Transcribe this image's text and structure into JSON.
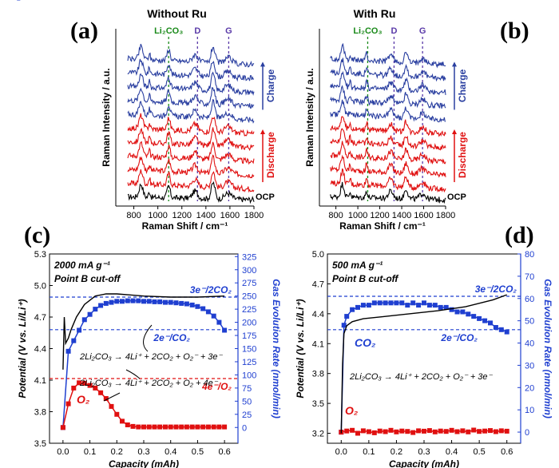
{
  "chart_data": [
    {
      "panel": "(a)",
      "type": "line",
      "title": "Without Ru",
      "xlabel": "Raman Shift / cm⁻¹",
      "ylabel": "Raman Intensity / a.u.",
      "xlim": [
        650,
        1800
      ],
      "xticks": [
        "800",
        "1000",
        "1200",
        "1400",
        "1600",
        "1800"
      ],
      "peak_markers": [
        {
          "label": "Li₂CO₃",
          "x": 1090,
          "color": "#1a8a1a"
        },
        {
          "label": "D",
          "x": 1330,
          "color": "#5a3aa8"
        },
        {
          "label": "G",
          "x": 1590,
          "color": "#5a3aa8"
        }
      ],
      "series_labels": {
        "charge": "Charge",
        "discharge": "Discharge",
        "ocp": "OCP"
      },
      "spectra": {
        "ocp": 1,
        "discharge": 5,
        "charge": 5
      }
    },
    {
      "panel": "(b)",
      "type": "line",
      "title": "With Ru",
      "xlabel": "Raman Shift / cm⁻¹",
      "ylabel": "Raman Intensity / a.u.",
      "xlim": [
        650,
        1800
      ],
      "xticks": [
        "800",
        "1000",
        "1200",
        "1400",
        "1600",
        "1800"
      ],
      "peak_markers": [
        {
          "label": "Li₂CO₃",
          "x": 1090,
          "color": "#1a8a1a"
        },
        {
          "label": "D",
          "x": 1330,
          "color": "#5a3aa8"
        },
        {
          "label": "G",
          "x": 1590,
          "color": "#5a3aa8"
        }
      ],
      "series_labels": {
        "charge": "Charge",
        "discharge": "Discharge",
        "ocp": "OCP"
      },
      "spectra": {
        "ocp": 1,
        "discharge": 5,
        "charge": 5
      }
    },
    {
      "panel": "(c)",
      "type": "line",
      "xlabel": "Capacity (mAh)",
      "ylabel": "Potential (V vs. Li/Li⁺)",
      "y2label": "Gas Evolution Rate (nmol/min)",
      "xlim": [
        -0.05,
        0.65
      ],
      "ylim": [
        3.5,
        5.3
      ],
      "y2lim": [
        -30,
        330
      ],
      "xticks": [
        "0.0",
        "0.1",
        "0.2",
        "0.3",
        "0.4",
        "0.5",
        "0.6"
      ],
      "yticks": [
        "3.5",
        "3.8",
        "4.1",
        "4.4",
        "4.7",
        "5.0",
        "5.3"
      ],
      "y2ticks": [
        "0",
        "25",
        "50",
        "75",
        "100",
        "125",
        "150",
        "175",
        "200",
        "225",
        "250",
        "275",
        "300",
        "325"
      ],
      "annotations": [
        "2000 mA g⁻¹",
        "Point B cut-off"
      ],
      "reference_lines": [
        {
          "label": "3e⁻/2CO₂",
          "y2": 248,
          "color": "#1f3fd0"
        },
        {
          "label": "2e⁻/CO₂",
          "y2": 186,
          "color": "#1f3fd0"
        },
        {
          "label": "4e⁻/O₂",
          "y2": 93,
          "color": "#e01010"
        }
      ],
      "equations": [
        "2Li₂CO₃ → 4Li⁺ + 2CO₂ + O₂⁻ + 3e⁻",
        "2Li₂CO₃ → 4Li⁺ + 2CO₂ + O₂ + 4e⁻"
      ],
      "series": [
        {
          "name": "CO₂",
          "color": "#1f3fd0",
          "x": [
            0.0,
            0.02,
            0.04,
            0.06,
            0.08,
            0.1,
            0.12,
            0.14,
            0.16,
            0.18,
            0.2,
            0.22,
            0.24,
            0.26,
            0.28,
            0.3,
            0.32,
            0.34,
            0.36,
            0.38,
            0.4,
            0.42,
            0.44,
            0.46,
            0.48,
            0.5,
            0.52,
            0.54,
            0.56,
            0.58,
            0.6
          ],
          "y": [
            0,
            145,
            165,
            185,
            205,
            215,
            225,
            232,
            236,
            238,
            240,
            240,
            241,
            241,
            241,
            240,
            240,
            239,
            239,
            238,
            238,
            237,
            236,
            235,
            233,
            230,
            226,
            220,
            212,
            200,
            185
          ]
        },
        {
          "name": "O₂",
          "color": "#e01010",
          "x": [
            0.0,
            0.02,
            0.04,
            0.06,
            0.08,
            0.1,
            0.12,
            0.14,
            0.16,
            0.18,
            0.2,
            0.22,
            0.24,
            0.26,
            0.28,
            0.3,
            0.32,
            0.34,
            0.36,
            0.38,
            0.4,
            0.42,
            0.44,
            0.46,
            0.48,
            0.5,
            0.52,
            0.54,
            0.56,
            0.58,
            0.6
          ],
          "y": [
            0,
            45,
            75,
            85,
            84,
            80,
            75,
            66,
            55,
            40,
            25,
            12,
            5,
            2,
            1,
            1,
            1,
            1,
            1,
            1,
            1,
            1,
            1,
            1,
            1,
            1,
            1,
            1,
            1,
            1,
            1
          ]
        },
        {
          "name": "Potential",
          "color": "#000000",
          "x": [
            0.0,
            0.005,
            0.01,
            0.02,
            0.03,
            0.05,
            0.08,
            0.12,
            0.16,
            0.2,
            0.25,
            0.3,
            0.4,
            0.5,
            0.6
          ],
          "y": [
            4.2,
            4.7,
            4.45,
            4.5,
            4.58,
            4.7,
            4.82,
            4.9,
            4.92,
            4.92,
            4.91,
            4.9,
            4.89,
            4.89,
            4.9
          ]
        }
      ]
    },
    {
      "panel": "(d)",
      "type": "line",
      "xlabel": "Capacity (mAh)",
      "ylabel": "Potential (V vs. Li/Li⁺)",
      "y2label": "Gas Evolution Rate (nmol/min)",
      "xlim": [
        -0.05,
        0.65
      ],
      "ylim": [
        3.1,
        5.0
      ],
      "y2lim": [
        -5,
        80
      ],
      "xticks": [
        "0.0",
        "0.1",
        "0.2",
        "0.3",
        "0.4",
        "0.5",
        "0.6"
      ],
      "yticks": [
        "3.2",
        "3.5",
        "3.8",
        "4.1",
        "4.4",
        "4.7",
        "5.0"
      ],
      "y2ticks": [
        "0",
        "10",
        "20",
        "30",
        "40",
        "50",
        "60",
        "70",
        "80"
      ],
      "annotations": [
        "500 mA g⁻¹",
        "Point B cut-off"
      ],
      "reference_lines": [
        {
          "label": "3e⁻/2CO₂",
          "y2": 61,
          "color": "#1f3fd0"
        },
        {
          "label": "2e⁻/CO₂",
          "y2": 46,
          "color": "#1f3fd0"
        }
      ],
      "equations": [
        "2Li₂CO₃ → 4Li⁺ + 2CO₂ + O₂⁻ + 3e⁻"
      ],
      "series": [
        {
          "name": "CO₂",
          "color": "#1f3fd0",
          "x": [
            0.0,
            0.01,
            0.02,
            0.04,
            0.06,
            0.08,
            0.1,
            0.12,
            0.14,
            0.16,
            0.18,
            0.2,
            0.22,
            0.24,
            0.26,
            0.28,
            0.3,
            0.32,
            0.34,
            0.36,
            0.38,
            0.4,
            0.42,
            0.44,
            0.46,
            0.48,
            0.5,
            0.52,
            0.54,
            0.56,
            0.58,
            0.6
          ],
          "y": [
            0,
            48,
            52,
            55,
            56,
            57,
            57,
            58,
            58,
            58,
            58,
            58,
            58,
            57,
            58,
            57,
            58,
            57,
            57,
            56,
            56,
            55,
            54,
            54,
            53,
            52,
            51,
            50,
            49,
            47,
            46,
            45
          ]
        },
        {
          "name": "O₂",
          "color": "#e01010",
          "x": [
            0.0,
            0.02,
            0.04,
            0.06,
            0.08,
            0.1,
            0.12,
            0.14,
            0.16,
            0.18,
            0.2,
            0.22,
            0.24,
            0.26,
            0.28,
            0.3,
            0.32,
            0.34,
            0.36,
            0.38,
            0.4,
            0.42,
            0.44,
            0.46,
            0.48,
            0.5,
            0.52,
            0.54,
            0.56,
            0.58,
            0.6
          ],
          "y": [
            0,
            0.5,
            0.8,
            -0.5,
            0.6,
            0.2,
            -0.3,
            0.5,
            0.2,
            0.8,
            0.1,
            0.5,
            0.3,
            -0.2,
            0.6,
            0.4,
            0.7,
            0.1,
            0.5,
            0.3,
            0.8,
            0.2,
            0.6,
            0.1,
            0.9,
            0.3,
            0.5,
            0.7,
            0.2,
            0.6,
            0.4
          ]
        },
        {
          "name": "Potential",
          "color": "#000000",
          "x": [
            0.0,
            0.005,
            0.01,
            0.02,
            0.04,
            0.08,
            0.15,
            0.25,
            0.35,
            0.45,
            0.55,
            0.6
          ],
          "y": [
            3.2,
            3.9,
            4.2,
            4.28,
            4.32,
            4.35,
            4.37,
            4.4,
            4.43,
            4.47,
            4.54,
            4.59
          ]
        }
      ]
    }
  ]
}
